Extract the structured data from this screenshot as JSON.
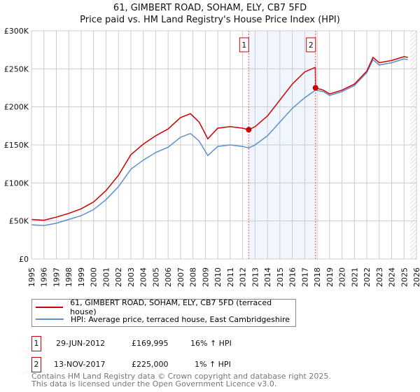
{
  "chart_data": {
    "type": "line",
    "title": "61, GIMBERT ROAD, SOHAM, ELY, CB7 5FD",
    "subtitle": "Price paid vs. HM Land Registry's House Price Index (HPI)",
    "xlabel": "",
    "ylabel": "",
    "xlim": [
      1995,
      2026
    ],
    "ylim": [
      0,
      300000
    ],
    "grid": true,
    "y_ticks": [
      {
        "v": 0,
        "label": "£0"
      },
      {
        "v": 50000,
        "label": "£50K"
      },
      {
        "v": 100000,
        "label": "£100K"
      },
      {
        "v": 150000,
        "label": "£150K"
      },
      {
        "v": 200000,
        "label": "£200K"
      },
      {
        "v": 250000,
        "label": "£250K"
      },
      {
        "v": 300000,
        "label": "£300K"
      }
    ],
    "x_ticks": [
      "1995",
      "1996",
      "1997",
      "1998",
      "1999",
      "2000",
      "2001",
      "2002",
      "2003",
      "2004",
      "2005",
      "2006",
      "2007",
      "2008",
      "2009",
      "2010",
      "2011",
      "2012",
      "2013",
      "2014",
      "2015",
      "2016",
      "2017",
      "2018",
      "2019",
      "2020",
      "2021",
      "2022",
      "2023",
      "2024",
      "2025",
      "2026"
    ],
    "series": [
      {
        "name": "61, GIMBERT ROAD, SOHAM, ELY, CB7 5FD (terraced house)",
        "color": "#cc0000",
        "x": [
          1995,
          1996,
          1997,
          1998,
          1999,
          2000,
          2001,
          2002,
          2003,
          2004,
          2005,
          2006,
          2007,
          2007.8,
          2008.5,
          2009.2,
          2010,
          2011,
          2012,
          2012.49,
          2013,
          2014,
          2015,
          2016,
          2017,
          2017.85,
          2017.87,
          2018.5,
          2019,
          2020,
          2021,
          2022,
          2022.5,
          2023,
          2024,
          2025,
          2025.3
        ],
        "values": [
          52000,
          51000,
          55000,
          60000,
          66000,
          75000,
          90000,
          110000,
          137000,
          151000,
          162000,
          171000,
          186000,
          191000,
          180000,
          158000,
          172000,
          174000,
          172000,
          169995,
          174000,
          188000,
          209000,
          230000,
          246000,
          252000,
          225000,
          222000,
          217000,
          222000,
          230000,
          247000,
          265000,
          258000,
          261000,
          266000,
          265000
        ]
      },
      {
        "name": "HPI: Average price, terraced house, East Cambridgeshire",
        "color": "#5b8fd0",
        "x": [
          1995,
          1996,
          1997,
          1998,
          1999,
          2000,
          2001,
          2002,
          2003,
          2004,
          2005,
          2006,
          2007,
          2007.8,
          2008.5,
          2009.2,
          2010,
          2011,
          2012,
          2012.5,
          2013,
          2014,
          2015,
          2016,
          2017,
          2017.87,
          2018.5,
          2019,
          2020,
          2021,
          2022,
          2022.5,
          2023,
          2024,
          2025,
          2025.3
        ],
        "values": [
          45000,
          44000,
          47000,
          52000,
          57000,
          65000,
          78000,
          95000,
          118000,
          130000,
          140000,
          147000,
          160000,
          165000,
          155000,
          136000,
          148000,
          150000,
          148000,
          146000,
          150000,
          162000,
          180000,
          198000,
          212000,
          222000,
          220000,
          215000,
          220000,
          228000,
          245000,
          262000,
          255000,
          258000,
          263000,
          262000
        ]
      }
    ],
    "annotations": [
      {
        "label": "1",
        "x": 2012.49,
        "y": 169995
      },
      {
        "label": "2",
        "x": 2017.87,
        "y": 225000
      }
    ],
    "shaded_range": [
      2012.49,
      2017.87
    ],
    "hatched_from": 2025.5
  },
  "legend": {
    "items": [
      {
        "label": "61, GIMBERT ROAD, SOHAM, ELY, CB7 5FD (terraced house)",
        "color": "#cc0000"
      },
      {
        "label": "HPI: Average price, terraced house, East Cambridgeshire",
        "color": "#5b8fd0"
      }
    ]
  },
  "transactions": [
    {
      "num": "1",
      "date": "29-JUN-2012",
      "price": "£169,995",
      "hpi": "16% ↑ HPI"
    },
    {
      "num": "2",
      "date": "13-NOV-2017",
      "price": "£225,000",
      "hpi": "1% ↑ HPI"
    }
  ],
  "footer": {
    "line1": "Contains HM Land Registry data © Crown copyright and database right 2025.",
    "line2": "This data is licensed under the Open Government Licence v3.0."
  }
}
